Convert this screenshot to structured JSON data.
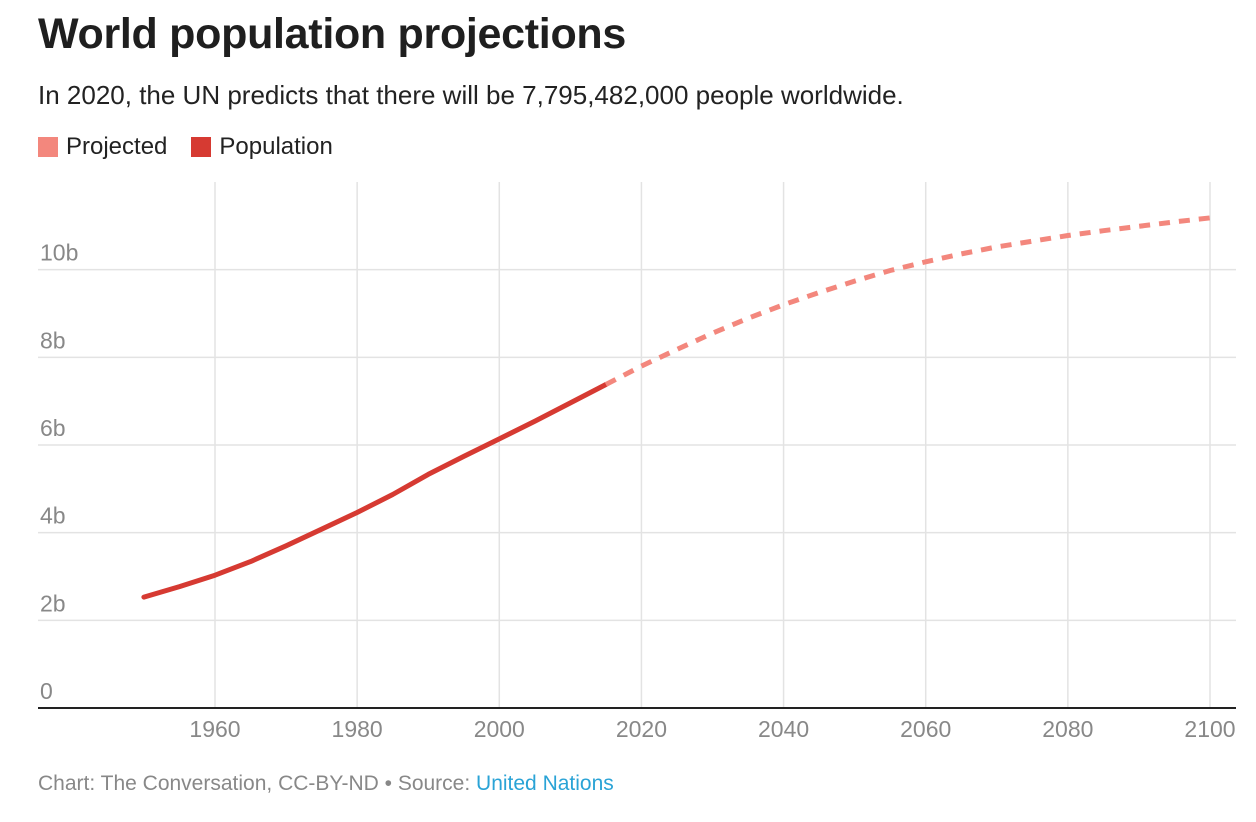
{
  "title": "World population projections",
  "subtitle": "In 2020, the UN predicts that there will be 7,795,482,000 people worldwide.",
  "legend": [
    {
      "label": "Projected",
      "color": "#f3877d"
    },
    {
      "label": "Population",
      "color": "#d63a32"
    }
  ],
  "source": {
    "prefix": "Chart: The Conversation, CC-BY-ND • Source: ",
    "link_text": "United Nations"
  },
  "chart_data": {
    "type": "line",
    "title": "World population projections",
    "xlabel": "",
    "ylabel": "",
    "xlim": [
      1940,
      2100
    ],
    "ylim": [
      0,
      12
    ],
    "x_ticks": [
      1960,
      1980,
      2000,
      2020,
      2040,
      2060,
      2080,
      2100
    ],
    "x_tick_labels": [
      "1960",
      "1980",
      "2000",
      "2020",
      "2040",
      "2060",
      "2080",
      "2100"
    ],
    "y_ticks": [
      0,
      2,
      4,
      6,
      8,
      10
    ],
    "y_tick_labels": [
      "0",
      "2b",
      "4b",
      "6b",
      "8b",
      "10b"
    ],
    "grid": true,
    "legend_position": "top-left",
    "series": [
      {
        "name": "Population",
        "color": "#d63a32",
        "style": "solid",
        "points": [
          [
            1950,
            2.53
          ],
          [
            1955,
            2.77
          ],
          [
            1960,
            3.03
          ],
          [
            1965,
            3.34
          ],
          [
            1970,
            3.7
          ],
          [
            1975,
            4.08
          ],
          [
            1980,
            4.46
          ],
          [
            1985,
            4.87
          ],
          [
            1990,
            5.33
          ],
          [
            1995,
            5.74
          ],
          [
            2000,
            6.14
          ],
          [
            2005,
            6.54
          ],
          [
            2010,
            6.96
          ],
          [
            2015,
            7.38
          ]
        ]
      },
      {
        "name": "Projected",
        "color": "#f3877d",
        "style": "dashed",
        "points": [
          [
            2015,
            7.38
          ],
          [
            2020,
            7.8
          ],
          [
            2025,
            8.18
          ],
          [
            2030,
            8.55
          ],
          [
            2035,
            8.89
          ],
          [
            2040,
            9.2
          ],
          [
            2045,
            9.48
          ],
          [
            2050,
            9.74
          ],
          [
            2055,
            9.98
          ],
          [
            2060,
            10.18
          ],
          [
            2065,
            10.36
          ],
          [
            2070,
            10.52
          ],
          [
            2075,
            10.65
          ],
          [
            2080,
            10.78
          ],
          [
            2085,
            10.89
          ],
          [
            2090,
            10.99
          ],
          [
            2095,
            11.09
          ],
          [
            2100,
            11.18
          ]
        ]
      }
    ]
  }
}
